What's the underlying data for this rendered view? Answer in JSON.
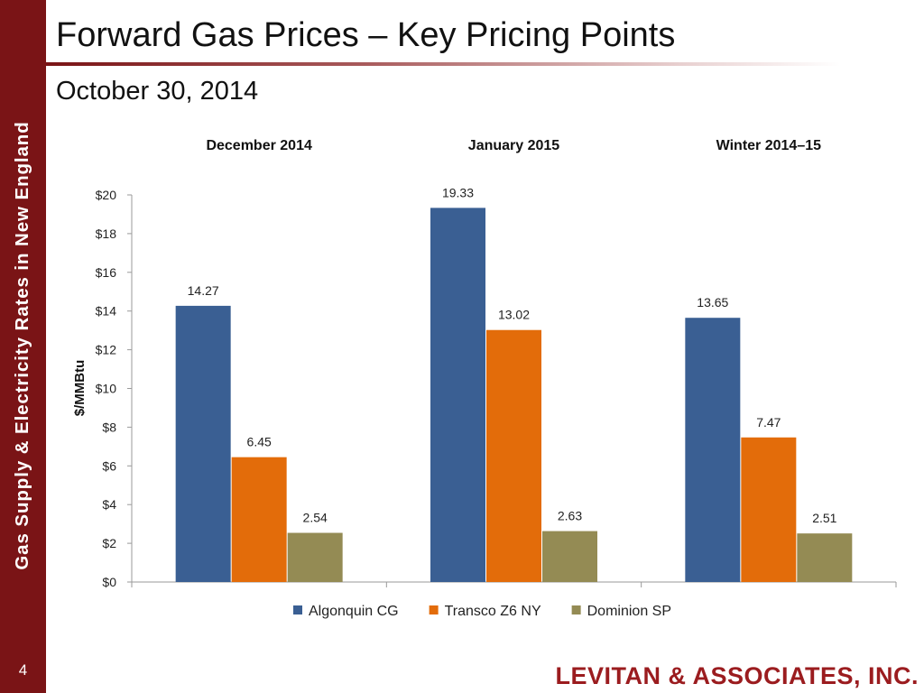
{
  "sidebar": {
    "vertical_text": "Gas Supply & Electricity Rates in New England",
    "slide_number": "4"
  },
  "header": {
    "title": "Forward Gas Prices – Key Pricing Points",
    "subtitle": "October 30, 2014"
  },
  "footer": {
    "logo_text": "LEVITAN & ASSOCIATES, INC."
  },
  "colors": {
    "accent": "#7a1416",
    "algonquin": "#3a5f93",
    "transco": "#e36c0a",
    "dominion": "#948b54"
  },
  "chart_data": {
    "type": "bar",
    "categories": [
      "December 2014",
      "January 2015",
      "Winter 2014–15"
    ],
    "series": [
      {
        "name": "Algonquin CG",
        "color": "#3a5f93",
        "values": [
          14.27,
          19.33,
          13.65
        ],
        "labels": [
          "14.27",
          "19.33",
          "13.65"
        ]
      },
      {
        "name": "Transco Z6 NY",
        "color": "#e36c0a",
        "values": [
          6.45,
          13.02,
          7.47
        ],
        "labels": [
          "6.45",
          "13.02",
          "7.47"
        ]
      },
      {
        "name": "Dominion SP",
        "color": "#948b54",
        "values": [
          2.54,
          2.63,
          2.51
        ],
        "labels": [
          "2.54",
          "2.63",
          "2.51"
        ]
      }
    ],
    "ylabel": "$/MMBtu",
    "xlabel": "",
    "ylim": [
      0,
      20
    ],
    "yticks": [
      0,
      2,
      4,
      6,
      8,
      10,
      12,
      14,
      16,
      18,
      20
    ],
    "ytick_labels": [
      "$0",
      "$2",
      "$4",
      "$6",
      "$8",
      "$10",
      "$12",
      "$14",
      "$16",
      "$18",
      "$20"
    ],
    "legend": "bottom",
    "grid": false
  }
}
